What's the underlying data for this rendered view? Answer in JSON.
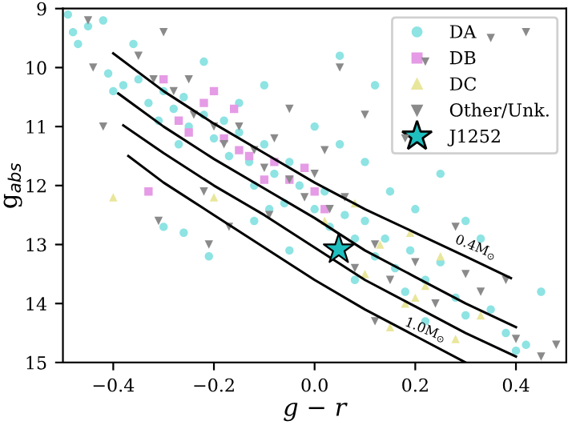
{
  "chart_data": {
    "type": "scatter",
    "xlabel": "g − r",
    "ylabel": "g$_{abs}$",
    "xlim": [
      -0.5,
      0.5
    ],
    "ylim": [
      15,
      9
    ],
    "xticks": [
      {
        "value": -0.4,
        "label": "−0.4"
      },
      {
        "value": -0.2,
        "label": "−0.2"
      },
      {
        "value": 0.0,
        "label": "0.0"
      },
      {
        "value": 0.2,
        "label": "0.2"
      },
      {
        "value": 0.4,
        "label": "0.4"
      }
    ],
    "yticks": [
      9,
      10,
      11,
      12,
      13,
      14,
      15
    ],
    "grid": false,
    "legend": "top right",
    "annotations": [
      {
        "text": "0.4M$_{⊙}$",
        "x": 0.32,
        "y": 13.05
      },
      {
        "text": "1.0M$_{⊙}$",
        "x": 0.22,
        "y": 14.45
      }
    ],
    "series": [
      {
        "name": "DA",
        "marker": "circle",
        "color": "#8ee3e3",
        "x": [
          -0.49,
          -0.48,
          -0.47,
          -0.45,
          -0.42,
          -0.36,
          -0.38,
          -0.41,
          -0.35,
          -0.33,
          -0.3,
          -0.31,
          -0.28,
          -0.26,
          -0.25,
          -0.27,
          -0.22,
          -0.2,
          -0.18,
          -0.17,
          -0.15,
          -0.13,
          -0.1,
          -0.12,
          -0.08,
          -0.05,
          -0.06,
          -0.03,
          0.0,
          0.02,
          0.03,
          0.06,
          0.08,
          0.1,
          0.12,
          0.14,
          0.16,
          0.19,
          0.22,
          0.25,
          0.28,
          0.3,
          0.35,
          0.38,
          0.42,
          -0.3,
          -0.26,
          -0.21,
          -0.12,
          -0.09,
          0.05,
          0.1,
          0.15,
          0.2,
          0.25,
          0.3,
          0.45,
          0.4,
          -0.05,
          0.08,
          0.0,
          -0.15,
          -0.1,
          0.12,
          0.05,
          -0.22,
          -0.4,
          0.33,
          0.18,
          0.22
        ],
        "values": [
          9.1,
          9.4,
          9.6,
          9.3,
          9.2,
          9.6,
          10.3,
          10.1,
          10.2,
          10.6,
          10.4,
          10.9,
          10.7,
          10.5,
          11.0,
          11.3,
          10.8,
          11.2,
          10.9,
          11.5,
          11.1,
          11.6,
          11.3,
          12.0,
          11.8,
          11.6,
          12.3,
          12.0,
          12.4,
          12.1,
          12.7,
          12.5,
          12.9,
          12.6,
          13.2,
          12.9,
          13.4,
          13.1,
          13.6,
          13.3,
          13.9,
          14.2,
          14.1,
          14.5,
          14.7,
          12.7,
          12.8,
          13.2,
          12.6,
          12.4,
          11.3,
          11.6,
          12.1,
          12.4,
          11.8,
          12.6,
          13.8,
          14.8,
          13.1,
          13.6,
          11.0,
          10.6,
          10.3,
          10.3,
          9.8,
          9.9,
          10.4,
          12.9,
          13.8,
          14.3
        ]
      },
      {
        "name": "DB",
        "marker": "square",
        "color": "#e59be5",
        "x": [
          -0.3,
          -0.27,
          -0.22,
          -0.18,
          -0.15,
          -0.13,
          -0.1,
          -0.08,
          -0.05,
          0.0,
          -0.2,
          0.02,
          -0.25,
          -0.33,
          -0.16,
          -0.02
        ],
        "values": [
          10.2,
          10.9,
          10.6,
          11.2,
          11.4,
          11.5,
          11.9,
          11.6,
          11.9,
          12.1,
          10.4,
          12.4,
          11.1,
          12.1,
          10.7,
          11.7
        ]
      },
      {
        "name": "DC",
        "marker": "triangle",
        "color": "#e8e69a",
        "x": [
          -0.4,
          -0.2,
          0.02,
          0.1,
          0.13,
          0.18,
          0.2,
          0.22,
          0.25,
          0.28,
          0.33,
          0.15,
          0.08,
          0.19
        ],
        "values": [
          12.2,
          12.2,
          12.6,
          13.5,
          13.0,
          14.0,
          13.9,
          13.7,
          13.2,
          14.6,
          14.2,
          14.4,
          12.3,
          12.8
        ]
      },
      {
        "name": "Other/Unk.",
        "marker": "triangle_down",
        "color": "#8a8a8a",
        "x": [
          -0.45,
          -0.44,
          -0.42,
          -0.3,
          -0.35,
          -0.32,
          -0.28,
          -0.25,
          -0.24,
          -0.2,
          -0.18,
          -0.15,
          -0.12,
          -0.1,
          -0.08,
          -0.05,
          -0.02,
          0.0,
          0.03,
          0.06,
          0.08,
          0.12,
          0.15,
          0.2,
          0.24,
          0.3,
          0.33,
          0.38,
          0.4,
          0.45,
          0.48,
          -0.31,
          -0.21,
          -0.17,
          -0.09,
          0.1,
          0.05,
          -0.05,
          0.22,
          0.18,
          0.28,
          0.35,
          0.42,
          -0.22,
          0.12,
          0.02
        ],
        "values": [
          9.2,
          10.0,
          11.0,
          9.4,
          9.8,
          10.2,
          10.4,
          10.2,
          10.8,
          11.0,
          11.3,
          11.0,
          11.4,
          11.7,
          11.2,
          11.9,
          12.2,
          11.8,
          12.4,
          12.2,
          13.4,
          13.0,
          13.6,
          13.3,
          14.0,
          13.5,
          13.8,
          13.6,
          14.6,
          14.9,
          14.7,
          12.6,
          13.0,
          12.7,
          12.5,
          10.8,
          10.0,
          10.7,
          9.9,
          11.2,
          12.7,
          9.5,
          9.4,
          12.1,
          14.3,
          11.4
        ]
      },
      {
        "type": "line",
        "marker": "none",
        "line_style": "solid",
        "color": "#000000",
        "x": [
          -0.4,
          -0.3,
          -0.2,
          -0.1,
          0.0,
          0.1,
          0.2,
          0.3,
          0.39
        ],
        "values": [
          9.76,
          10.4,
          10.95,
          11.45,
          11.95,
          12.4,
          12.8,
          13.2,
          13.57
        ]
      },
      {
        "type": "line",
        "marker": "none",
        "line_style": "solid",
        "color": "#000000",
        "x": [
          -0.39,
          -0.3,
          -0.2,
          -0.1,
          0.0,
          0.1,
          0.2,
          0.3,
          0.4
        ],
        "values": [
          10.44,
          11.0,
          11.55,
          12.05,
          12.55,
          13.1,
          13.55,
          14.0,
          14.4
        ]
      },
      {
        "type": "line",
        "marker": "none",
        "line_style": "solid",
        "color": "#000000",
        "x": [
          -0.38,
          -0.3,
          -0.2,
          -0.1,
          0.0,
          0.1,
          0.2,
          0.3,
          0.4
        ],
        "values": [
          10.98,
          11.45,
          12.0,
          12.5,
          13.05,
          13.6,
          14.05,
          14.5,
          14.9
        ]
      },
      {
        "type": "line",
        "marker": "none",
        "line_style": "solid",
        "color": "#000000",
        "x": [
          -0.37,
          -0.3,
          -0.2,
          -0.1,
          0.0,
          0.1,
          0.2,
          0.3
        ],
        "values": [
          11.5,
          11.95,
          12.5,
          13.05,
          13.6,
          14.1,
          14.55,
          15.0
        ]
      },
      {
        "name": "J1252",
        "marker": "star",
        "color": "#1fbfbf",
        "x": [
          0.048
        ],
        "values": [
          13.08
        ]
      }
    ]
  }
}
